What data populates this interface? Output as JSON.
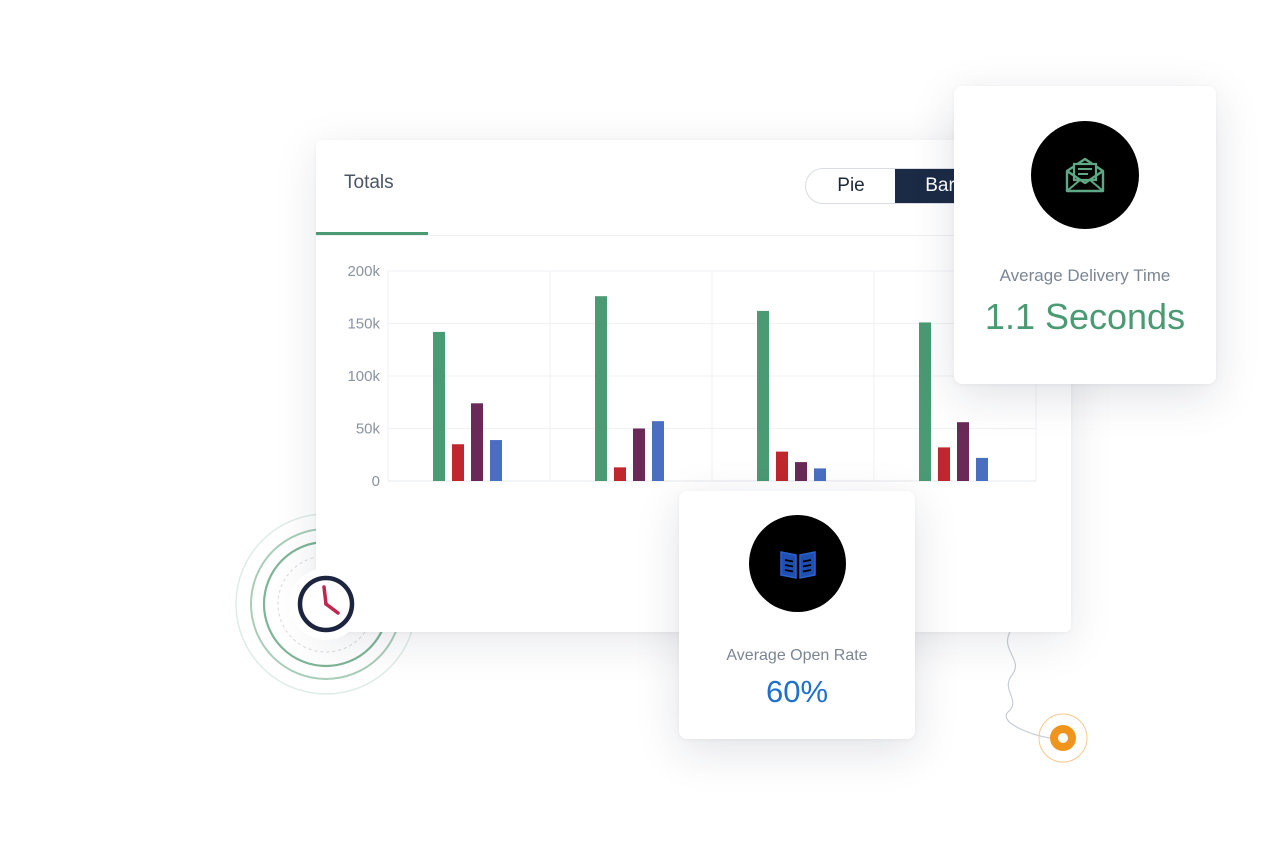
{
  "panel": {
    "tab_label": "Totals",
    "toggle": {
      "pie_label": "Pie",
      "bar_label": "Bar",
      "selected": "Bar"
    }
  },
  "chart_data": {
    "type": "bar",
    "categories": [
      "",
      "",
      "",
      ""
    ],
    "series": [
      {
        "values": [
          142000,
          176000,
          162000,
          151000
        ],
        "color": "#4a9a74"
      },
      {
        "values": [
          35000,
          13000,
          28000,
          32000
        ],
        "color": "#c0262d"
      },
      {
        "values": [
          74000,
          50000,
          18000,
          56000
        ],
        "color": "#6a2a57"
      },
      {
        "values": [
          39000,
          57000,
          12000,
          22000
        ],
        "color": "#4a6fc1"
      }
    ],
    "yticks": [
      "200k",
      "150k",
      "100k",
      "50k",
      "0"
    ],
    "ylim": [
      0,
      200000
    ],
    "grid": true,
    "legend": "none"
  },
  "cards": {
    "delivery": {
      "icon": "open-envelope-icon",
      "label": "Average Delivery Time",
      "value": "1.1 Seconds"
    },
    "open_rate": {
      "icon": "open-book-icon",
      "label": "Average Open Rate",
      "value": "60%"
    }
  },
  "decorations": {
    "clock_icon": "clock-icon",
    "orange_dot": "orange-target-icon"
  },
  "colors": {
    "accent_green": "#4a9a74",
    "navy": "#1c2b45",
    "blue": "#1f6fd1",
    "orange": "#f0941c",
    "clock_hand": "#c0264f"
  }
}
